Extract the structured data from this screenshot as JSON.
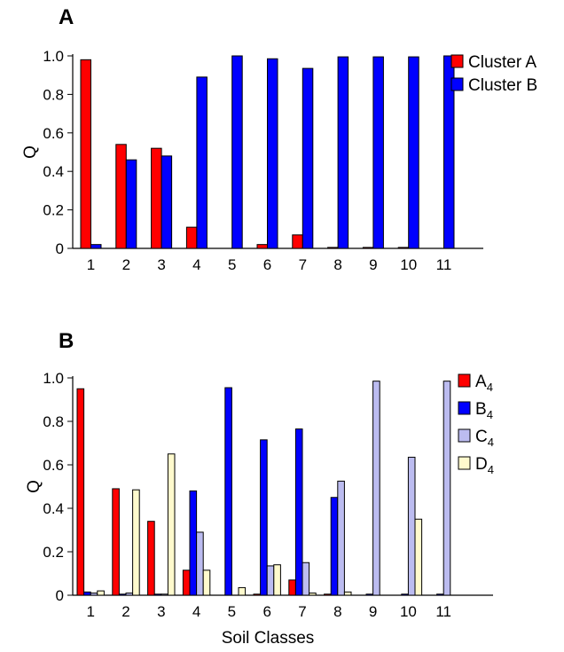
{
  "figure": {
    "panel_a_label": "A",
    "panel_b_label": "B"
  },
  "chart_data": [
    {
      "type": "bar",
      "panel": "A",
      "title": "",
      "xlabel": "",
      "ylabel": "Q",
      "ylim": [
        0,
        1.0
      ],
      "yticks": [
        "0",
        "0.2",
        "0.4",
        "0.6",
        "0.8",
        "1.0"
      ],
      "categories": [
        "1",
        "2",
        "3",
        "4",
        "5",
        "6",
        "7",
        "8",
        "9",
        "10",
        "11"
      ],
      "legend_position": "top-right",
      "series": [
        {
          "name": "Cluster A",
          "color": "#ff0000",
          "values": [
            0.98,
            0.54,
            0.52,
            0.11,
            0.0,
            0.02,
            0.07,
            0.005,
            0.005,
            0.005,
            0.0
          ]
        },
        {
          "name": "Cluster B",
          "color": "#0000ff",
          "values": [
            0.02,
            0.46,
            0.48,
            0.89,
            1.0,
            0.985,
            0.935,
            0.995,
            0.995,
            0.995,
            1.0
          ]
        }
      ]
    },
    {
      "type": "bar",
      "panel": "B",
      "title": "",
      "xlabel": "Soil Classes",
      "ylabel": "Q",
      "ylim": [
        0,
        1.0
      ],
      "yticks": [
        "0",
        "0.2",
        "0.4",
        "0.6",
        "0.8",
        "1.0"
      ],
      "categories": [
        "1",
        "2",
        "3",
        "4",
        "5",
        "6",
        "7",
        "8",
        "9",
        "10",
        "11"
      ],
      "legend_position": "top-right",
      "series": [
        {
          "name": "A",
          "subscript": "4",
          "color": "#ff0000",
          "values": [
            0.95,
            0.49,
            0.34,
            0.115,
            0.0,
            0.005,
            0.07,
            0.005,
            0.0,
            0.0,
            0.0
          ]
        },
        {
          "name": "B",
          "subscript": "4",
          "color": "#0000ff",
          "values": [
            0.015,
            0.005,
            0.005,
            0.48,
            0.955,
            0.715,
            0.765,
            0.45,
            0.005,
            0.005,
            0.005
          ]
        },
        {
          "name": "C",
          "subscript": "4",
          "color": "#bcbcf0",
          "values": [
            0.01,
            0.01,
            0.005,
            0.29,
            0.0,
            0.135,
            0.15,
            0.525,
            0.985,
            0.635,
            0.985
          ]
        },
        {
          "name": "D",
          "subscript": "4",
          "color": "#fffacd",
          "values": [
            0.02,
            0.485,
            0.65,
            0.115,
            0.035,
            0.14,
            0.01,
            0.015,
            0.0,
            0.35,
            0.0
          ]
        }
      ]
    }
  ]
}
